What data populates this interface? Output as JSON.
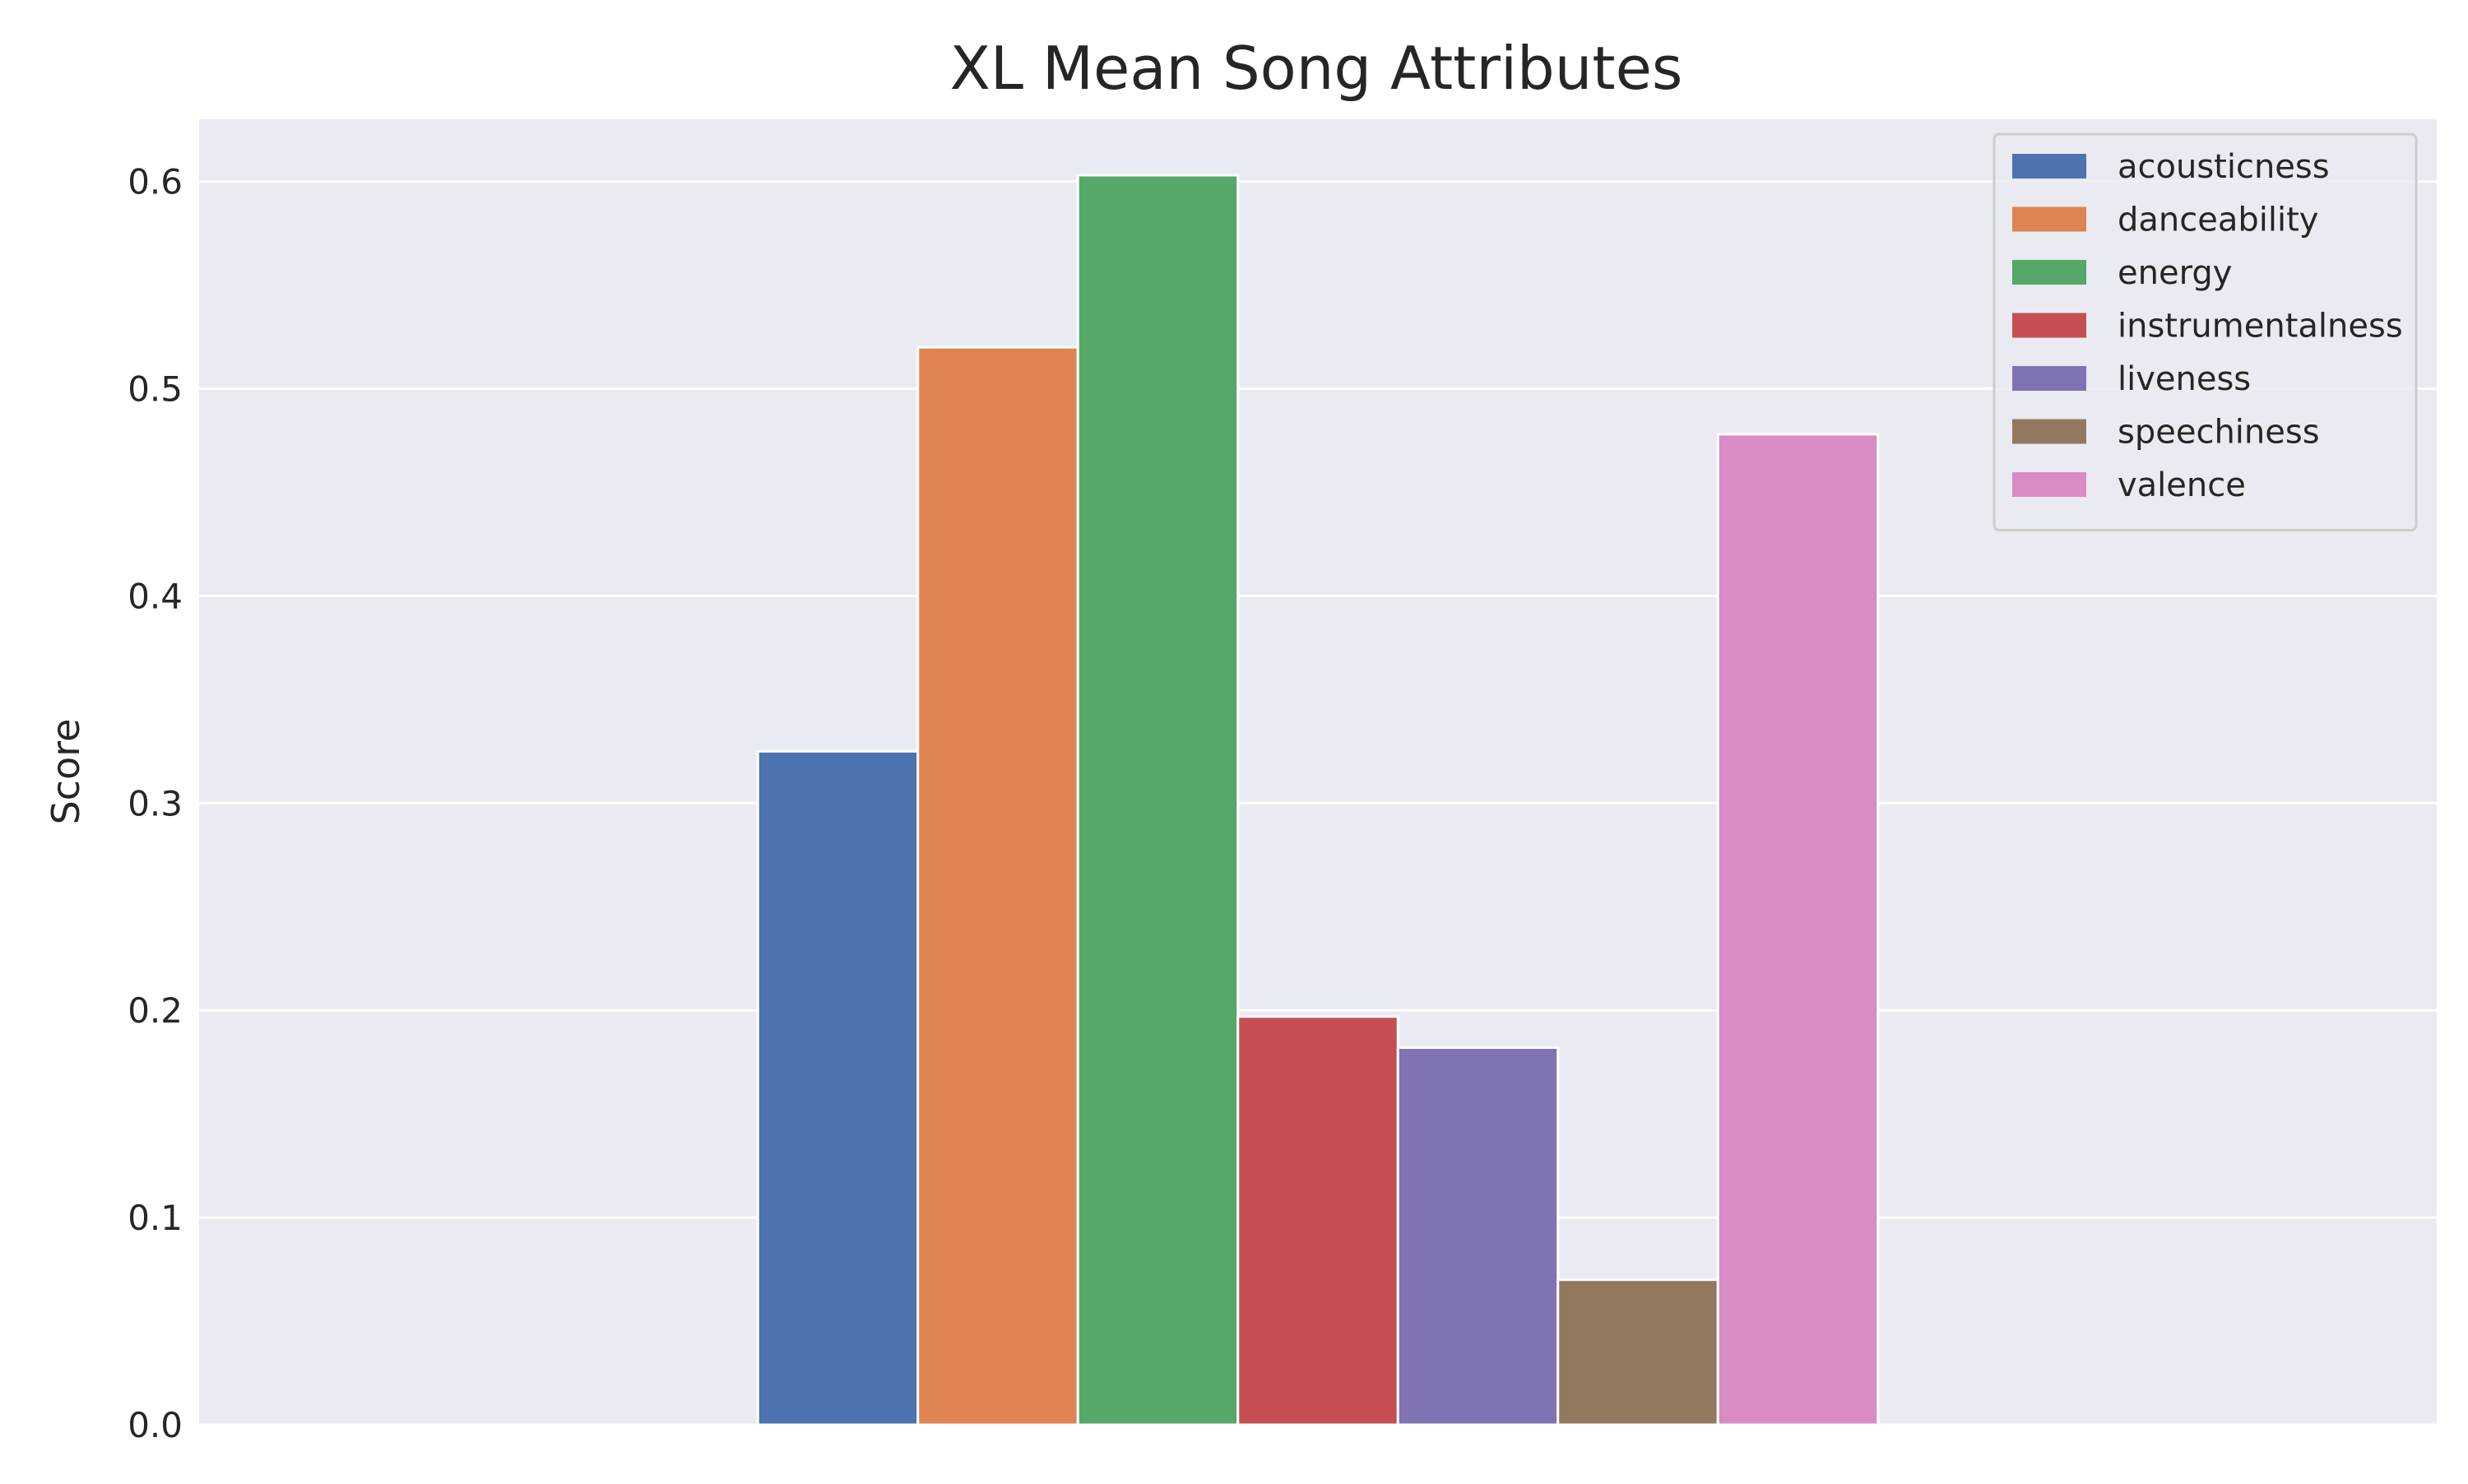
{
  "chart_data": {
    "type": "bar",
    "title": "XL Mean Song Attributes",
    "xlabel": "",
    "ylabel": "Score",
    "ylim": [
      0,
      0.63
    ],
    "yticks": [
      "0.0",
      "0.1",
      "0.2",
      "0.3",
      "0.4",
      "0.5",
      "0.6"
    ],
    "grid": true,
    "legend_position": "top-right",
    "background_color": "#eaeaf2",
    "grid_color": "#ffffff",
    "series": [
      {
        "name": "acousticness",
        "value": 0.325,
        "color": "#4c72b0"
      },
      {
        "name": "danceability",
        "value": 0.52,
        "color": "#dd8452"
      },
      {
        "name": "energy",
        "value": 0.603,
        "color": "#55a868"
      },
      {
        "name": "instrumentalness",
        "value": 0.197,
        "color": "#c44e52"
      },
      {
        "name": "liveness",
        "value": 0.182,
        "color": "#8172b3"
      },
      {
        "name": "speechiness",
        "value": 0.07,
        "color": "#937860"
      },
      {
        "name": "valence",
        "value": 0.478,
        "color": "#da8bc3"
      }
    ]
  }
}
